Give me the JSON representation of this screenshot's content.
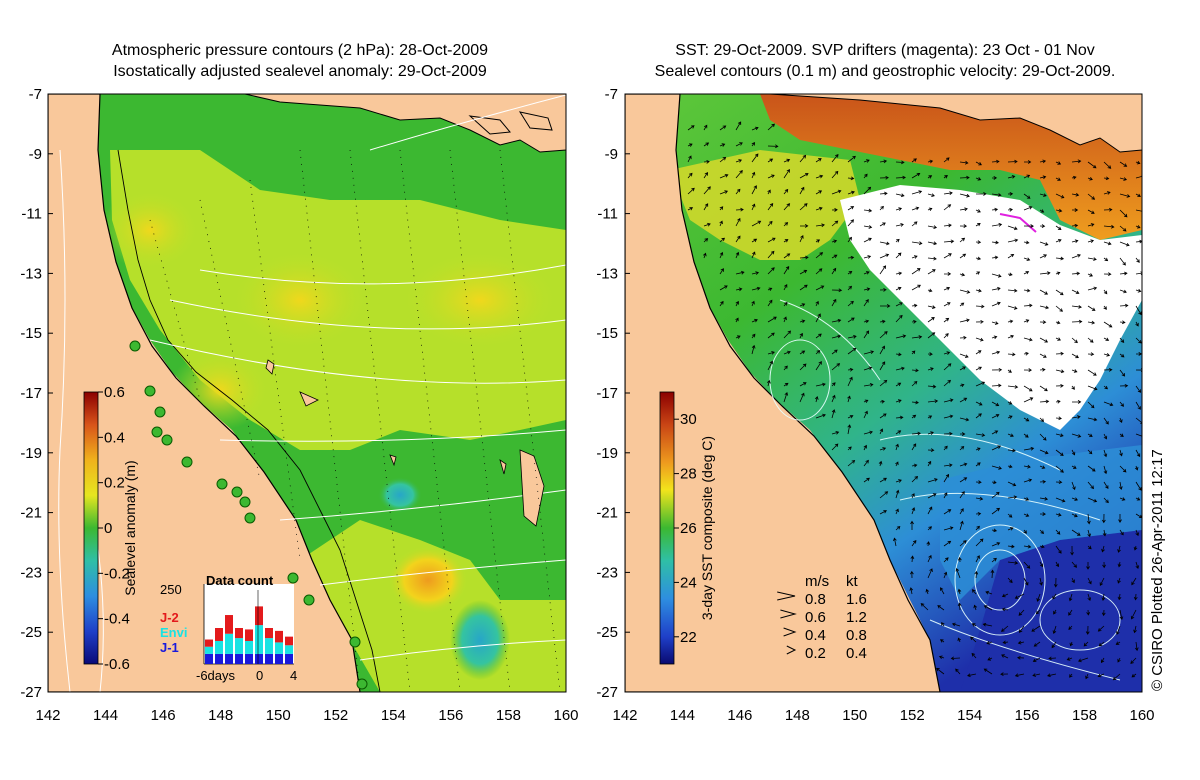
{
  "left_panel": {
    "title_line1": "Atmospheric pressure contours (2 hPa): 28-Oct-2009",
    "title_line2": "Isostatically adjusted sealevel anomaly: 29-Oct-2009",
    "colorbar": {
      "label": "Sealevel anomaly (m)",
      "ticks": [
        "0.6",
        "0.4",
        "0.2",
        "0",
        "-0.2",
        "-0.4",
        "-0.6"
      ]
    },
    "data_count": {
      "title": "Data count",
      "ymax_label": "250",
      "legend": [
        {
          "name": "J-2",
          "color": "#e31a1c"
        },
        {
          "name": "Envi",
          "color": "#19e3e3"
        },
        {
          "name": "J-1",
          "color": "#1a1adc"
        }
      ],
      "xticks": [
        "-6days",
        "0",
        "4"
      ],
      "bars": [
        {
          "j1": 0.14,
          "envi": 0.1,
          "j2": 0.1
        },
        {
          "j1": 0.14,
          "envi": 0.18,
          "j2": 0.18
        },
        {
          "j1": 0.14,
          "envi": 0.28,
          "j2": 0.26
        },
        {
          "j1": 0.14,
          "envi": 0.22,
          "j2": 0.14
        },
        {
          "j1": 0.14,
          "envi": 0.18,
          "j2": 0.16
        },
        {
          "j1": 0.14,
          "envi": 0.4,
          "j2": 0.26
        },
        {
          "j1": 0.14,
          "envi": 0.22,
          "j2": 0.14
        },
        {
          "j1": 0.14,
          "envi": 0.16,
          "j2": 0.16
        },
        {
          "j1": 0.14,
          "envi": 0.12,
          "j2": 0.12
        }
      ]
    }
  },
  "right_panel": {
    "title_line1": "SST: 29-Oct-2009. SVP drifters (magenta): 23 Oct - 01 Nov",
    "title_line2": "Sealevel contours (0.1 m) and geostrophic velocity: 29-Oct-2009.",
    "colorbar": {
      "label": "3-day SST composite (deg C)",
      "ticks": [
        "30",
        "28",
        "26",
        "24",
        "22"
      ]
    },
    "velocity_key": {
      "header_ms": "m/s",
      "header_kt": "kt",
      "rows": [
        {
          "ms": "0.8",
          "kt": "1.6"
        },
        {
          "ms": "0.6",
          "kt": "1.2"
        },
        {
          "ms": "0.4",
          "kt": "0.8"
        },
        {
          "ms": "0.2",
          "kt": "0.4"
        }
      ]
    }
  },
  "axes": {
    "lat_ticks": [
      "-7",
      "-9",
      "-11",
      "-13",
      "-15",
      "-17",
      "-19",
      "-21",
      "-23",
      "-25",
      "-27"
    ],
    "lon_ticks": [
      "142",
      "144",
      "146",
      "148",
      "150",
      "152",
      "154",
      "156",
      "158",
      "160"
    ]
  },
  "credit": "© CSIRO Plotted 26-Apr-2011 12:17",
  "colors": {
    "land": "#f9c89b",
    "green": "#3cb831",
    "yellow_green": "#b6e02a",
    "yellow": "#f2e41c",
    "orange": "#ee9b1e",
    "cyan": "#29c2b6",
    "blue": "#2383d8",
    "navy": "#1e2faa",
    "white_cloud": "#ffffff"
  }
}
